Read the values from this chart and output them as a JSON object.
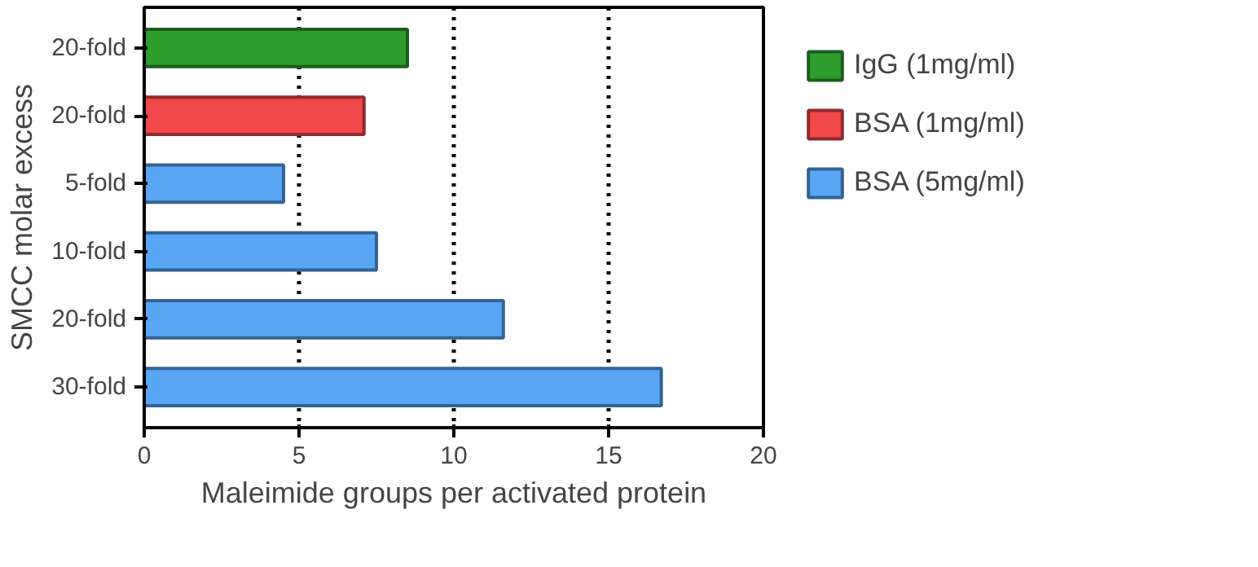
{
  "chart_data": {
    "type": "bar",
    "orientation": "horizontal",
    "xlabel": "Maleimide groups per activated protein",
    "ylabel": "SMCC molar excess",
    "categories": [
      "20-fold",
      "20-fold",
      "5-fold",
      "10-fold",
      "20-fold",
      "30-fold"
    ],
    "series": [
      {
        "name": "IgG (1mg/ml)",
        "color": "#2e9e2e",
        "values": [
          8.5,
          null,
          null,
          null,
          null,
          null
        ]
      },
      {
        "name": "BSA (1mg/ml)",
        "color": "#f2474b",
        "values": [
          null,
          7.1,
          null,
          null,
          null,
          null
        ]
      },
      {
        "name": "BSA (5mg/ml)",
        "color": "#58a6f5",
        "values": [
          null,
          null,
          4.5,
          7.5,
          11.6,
          16.7
        ]
      }
    ],
    "xlim": [
      0,
      20
    ],
    "xticks": [
      0,
      5,
      10,
      15,
      20
    ],
    "grid": "x",
    "legend": "right"
  }
}
